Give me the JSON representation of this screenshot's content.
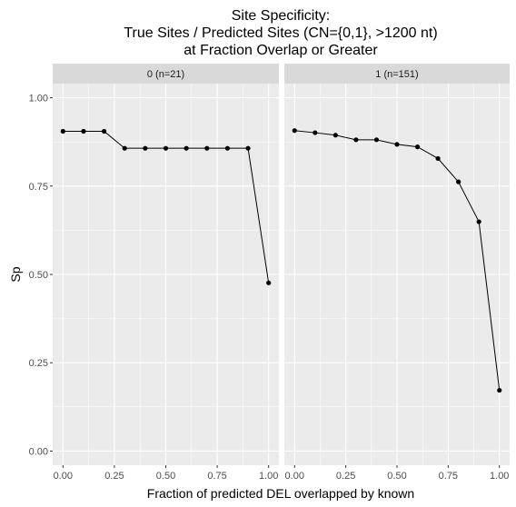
{
  "chart_data": {
    "type": "line",
    "title_lines": [
      "Site Specificity:",
      "True Sites / Predicted Sites (CN={0,1}, >1200 nt)",
      "at Fraction Overlap or Greater"
    ],
    "xlabel": "Fraction of predicted DEL overlapped by known",
    "ylabel": "Sp",
    "xlim": [
      -0.05,
      1.05
    ],
    "ylim": [
      -0.04,
      1.04
    ],
    "x_ticks": [
      0.0,
      0.25,
      0.5,
      0.75,
      1.0
    ],
    "x_tick_labels": [
      "0.00",
      "0.25",
      "0.50",
      "0.75",
      "1.00"
    ],
    "y_ticks": [
      0.0,
      0.25,
      0.5,
      0.75,
      1.0
    ],
    "y_tick_labels": [
      "0.00",
      "0.25",
      "0.50",
      "0.75",
      "1.00"
    ],
    "grid": true,
    "panels": [
      {
        "strip_label": "0 (n=21)",
        "x": [
          0.0,
          0.1,
          0.2,
          0.3,
          0.4,
          0.5,
          0.6,
          0.7,
          0.8,
          0.9,
          1.0
        ],
        "y": [
          0.905,
          0.905,
          0.905,
          0.857,
          0.857,
          0.857,
          0.857,
          0.857,
          0.857,
          0.857,
          0.476
        ]
      },
      {
        "strip_label": "1 (n=151)",
        "x": [
          0.0,
          0.1,
          0.2,
          0.3,
          0.4,
          0.5,
          0.6,
          0.7,
          0.8,
          0.9,
          1.0
        ],
        "y": [
          0.907,
          0.901,
          0.894,
          0.881,
          0.881,
          0.868,
          0.861,
          0.828,
          0.762,
          0.649,
          0.172
        ]
      }
    ]
  }
}
